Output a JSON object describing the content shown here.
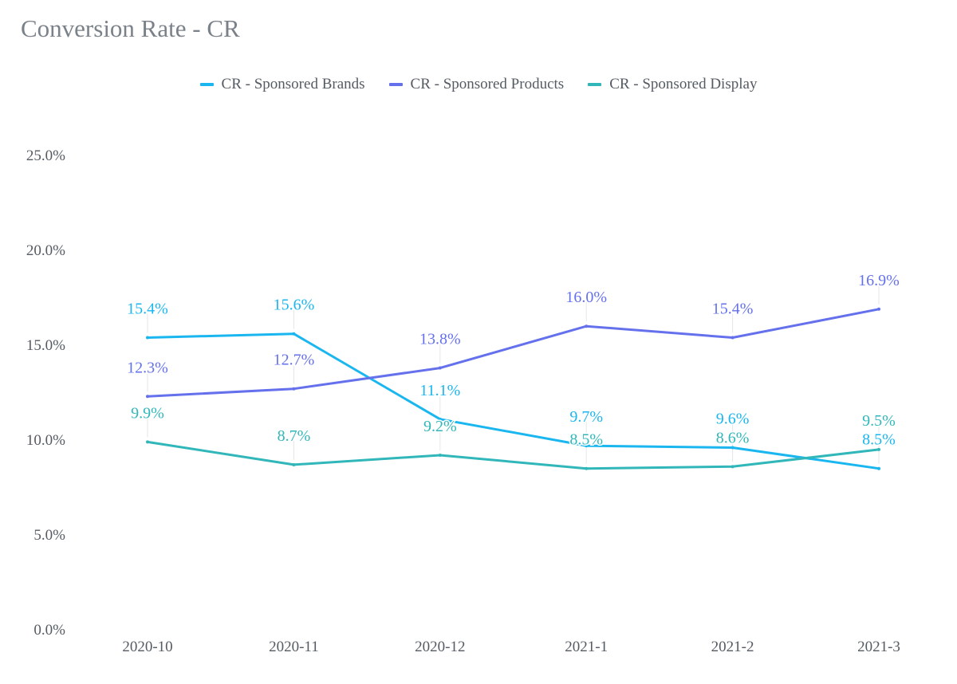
{
  "chart_data": {
    "type": "line",
    "title": "Conversion Rate - CR",
    "xlabel": "",
    "ylabel": "",
    "categories": [
      "2020-10",
      "2020-11",
      "2020-12",
      "2021-1",
      "2021-2",
      "2021-3"
    ],
    "ylim": [
      0,
      25
    ],
    "yticks": [
      "0.0%",
      "5.0%",
      "10.0%",
      "15.0%",
      "20.0%",
      "25.0%"
    ],
    "legend_position": "top-center",
    "grid": false,
    "series": [
      {
        "name": "CR - Sponsored Brands",
        "color": "#1ab6ef",
        "values": [
          15.4,
          15.6,
          11.1,
          9.7,
          9.6,
          8.5
        ],
        "labels": [
          "15.4%",
          "15.6%",
          "11.1%",
          "9.7%",
          "9.6%",
          "8.5%"
        ]
      },
      {
        "name": "CR - Sponsored Products",
        "color": "#6571ec",
        "values": [
          12.3,
          12.7,
          13.8,
          16.0,
          15.4,
          16.9
        ],
        "labels": [
          "12.3%",
          "12.7%",
          "13.8%",
          "16.0%",
          "15.4%",
          "16.9%"
        ]
      },
      {
        "name": "CR - Sponsored Display",
        "color": "#31b7b9",
        "values": [
          9.9,
          8.7,
          9.2,
          8.5,
          8.6,
          9.5
        ],
        "labels": [
          "9.9%",
          "8.7%",
          "9.2%",
          "8.5%",
          "8.6%",
          "9.5%"
        ]
      }
    ]
  }
}
